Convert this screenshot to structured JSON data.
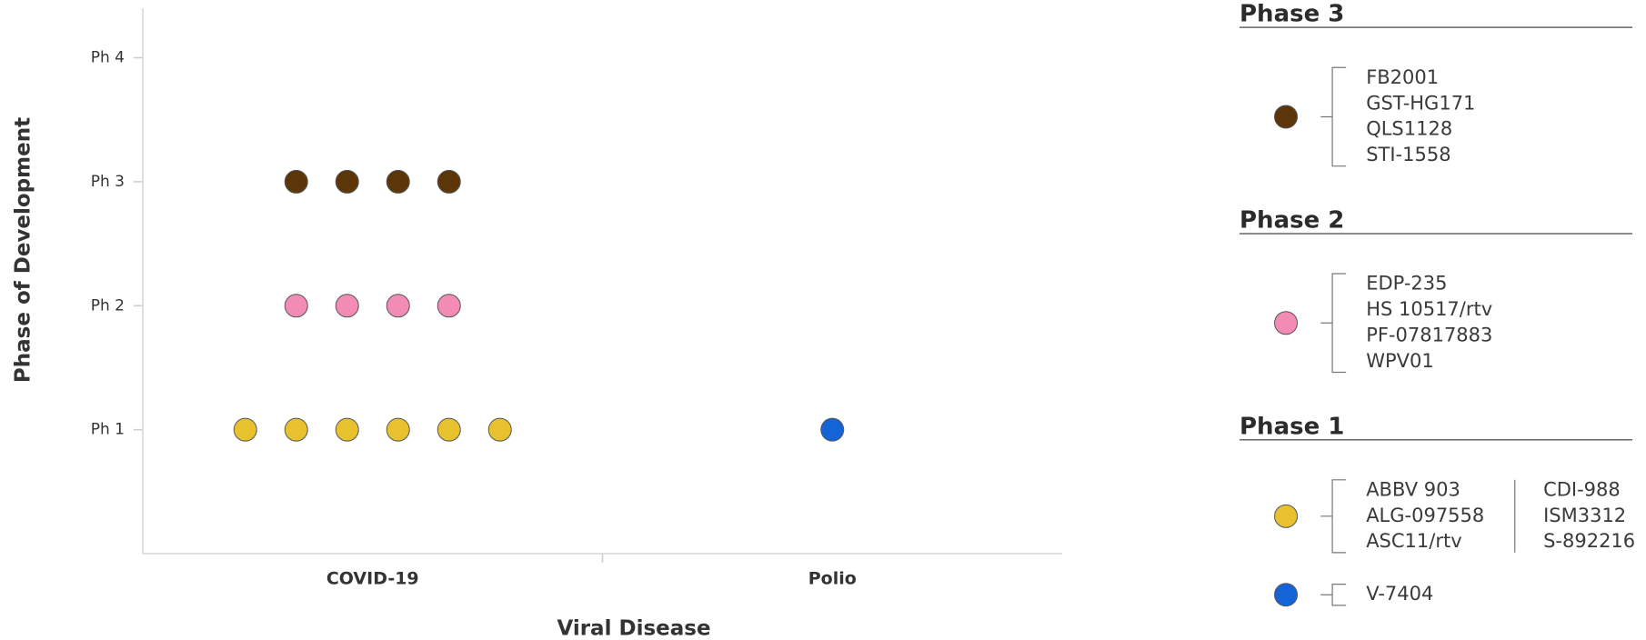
{
  "chart_data": {
    "type": "dot",
    "x_label": "Viral Disease",
    "y_label": "Phase of Development",
    "categories": [
      "COVID-19",
      "Polio"
    ],
    "ylim": [
      0,
      4.4
    ],
    "yticks": [
      {
        "value": 1,
        "label": "Ph 1"
      },
      {
        "value": 2,
        "label": "Ph 2"
      },
      {
        "value": 3,
        "label": "Ph 3"
      },
      {
        "value": 4,
        "label": "Ph 4"
      }
    ],
    "groups": [
      {
        "name": "Phase 3",
        "series": [
          {
            "color": "#5c3608",
            "category": "COVID-19",
            "values": [
              3,
              3,
              3,
              3
            ],
            "drugs": [
              "FB2001",
              "GST-HG171",
              "QLS1128",
              "STI-1558"
            ]
          }
        ]
      },
      {
        "name": "Phase 2",
        "series": [
          {
            "color": "#f28cb4",
            "category": "COVID-19",
            "values": [
              2,
              2,
              2,
              2
            ],
            "drugs": [
              "EDP-235",
              "HS 10517/rtv",
              "PF-07817883",
              "WPV01"
            ]
          }
        ]
      },
      {
        "name": "Phase 1",
        "series": [
          {
            "color": "#e8c22e",
            "category": "COVID-19",
            "values": [
              1,
              1,
              1,
              1,
              1,
              1
            ],
            "drugs": [
              "ABBV 903",
              "ALG-097558",
              "ASC11/rtv",
              "CDI-988",
              "ISM3312",
              "S-892216"
            ]
          },
          {
            "color": "#1464d8",
            "category": "Polio",
            "values": [
              1
            ],
            "drugs": [
              "V-7404"
            ]
          }
        ]
      }
    ]
  }
}
